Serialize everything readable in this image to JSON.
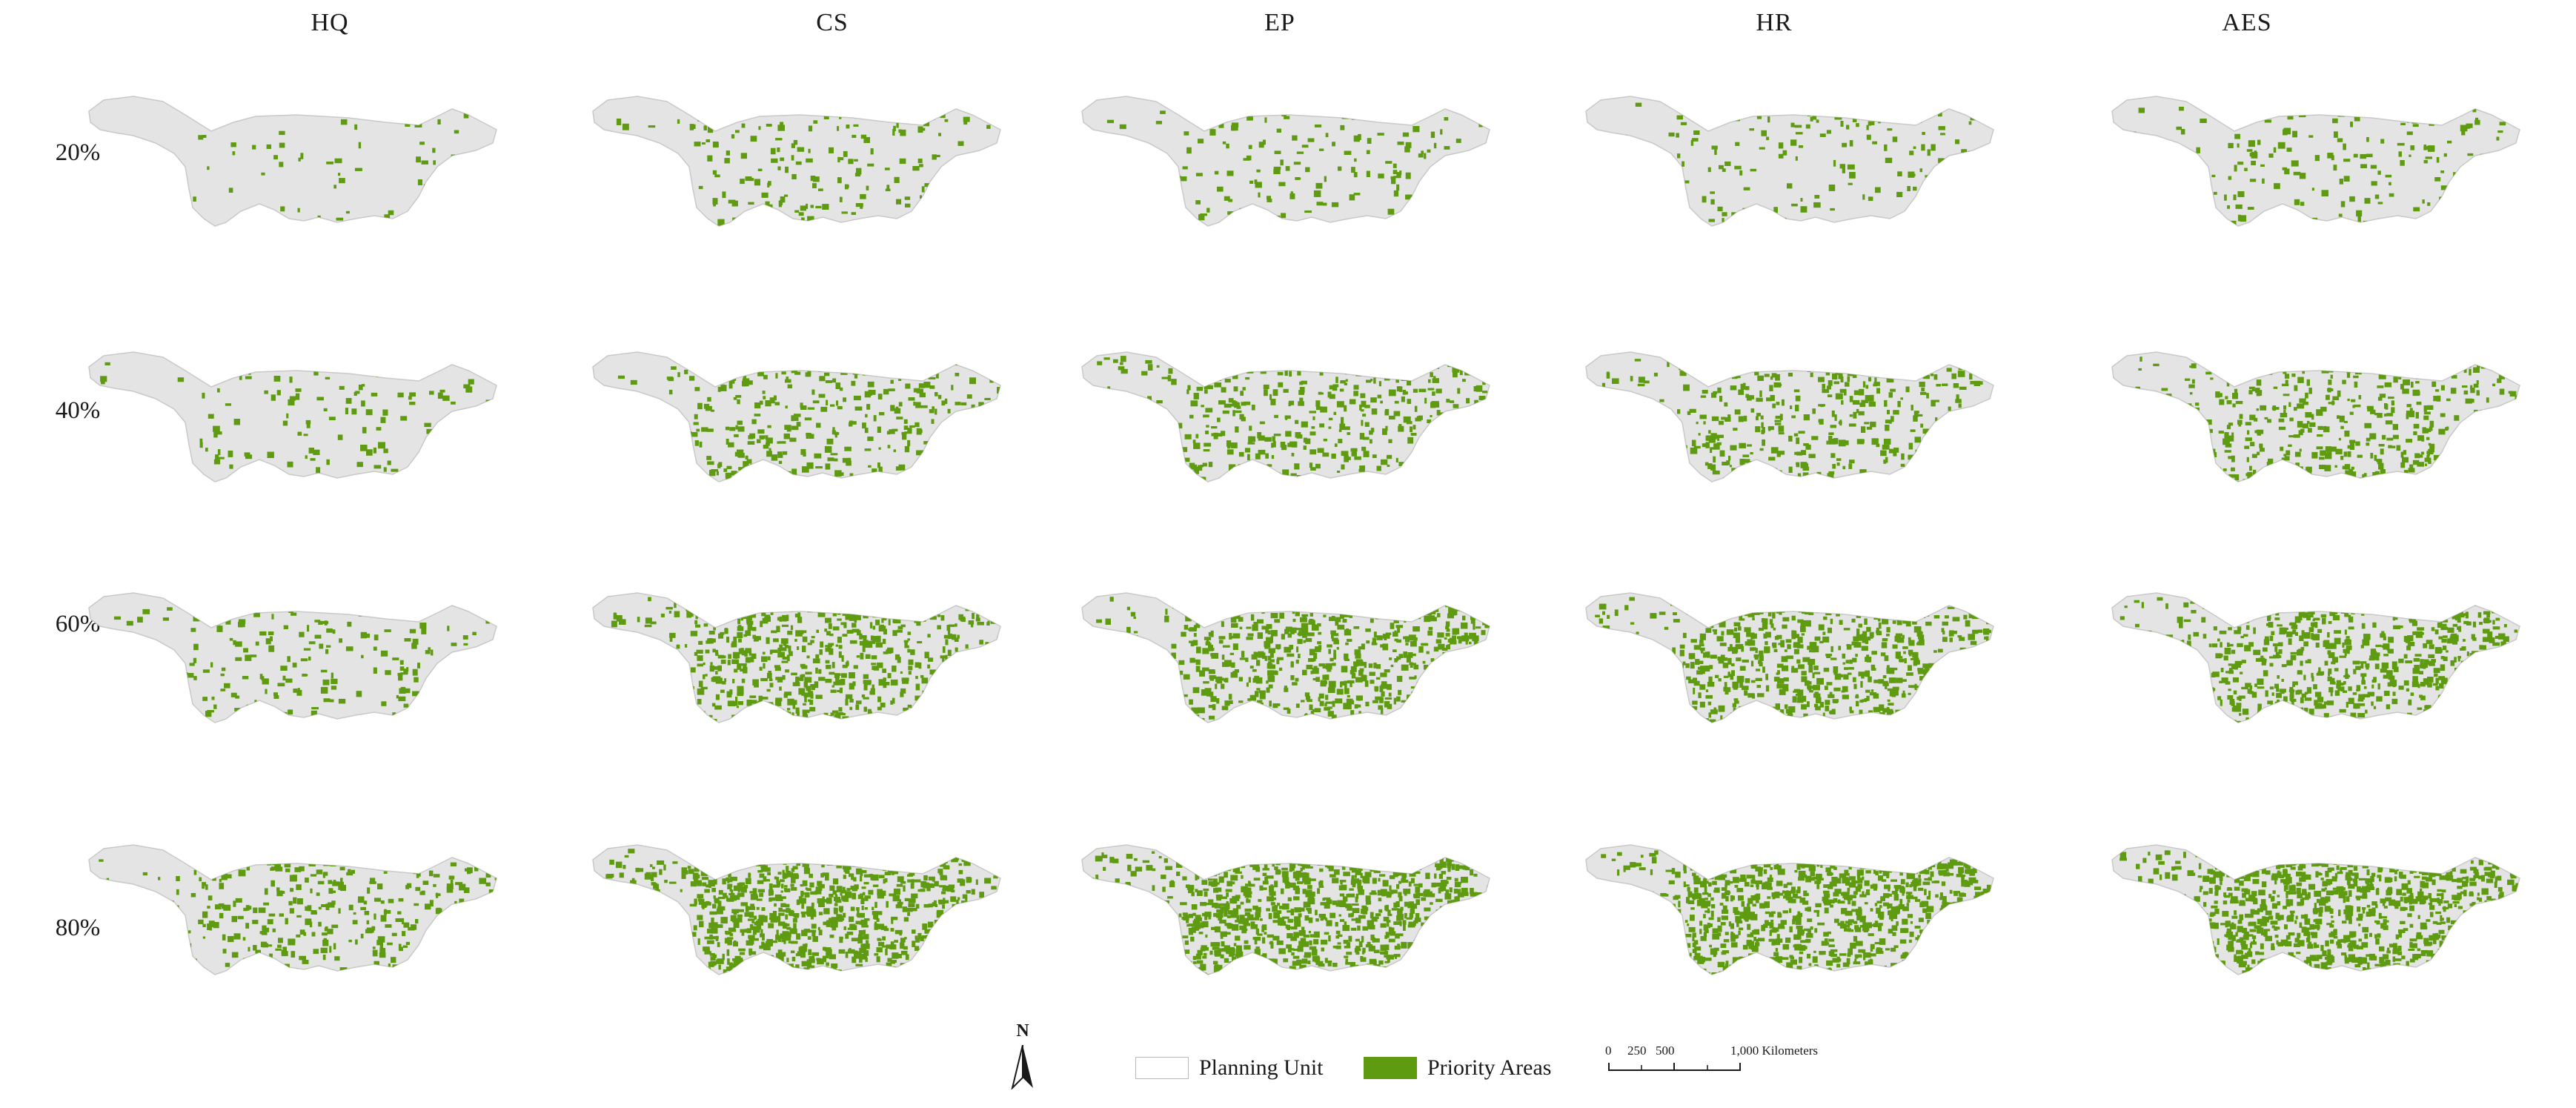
{
  "figure": {
    "columns": [
      "HQ",
      "CS",
      "EP",
      "HR",
      "AES"
    ],
    "rows": [
      "20%",
      "40%",
      "60%",
      "80%"
    ],
    "priority_fraction": {
      "HQ": [
        0.05,
        0.1,
        0.18,
        0.3
      ],
      "CS": [
        0.16,
        0.3,
        0.55,
        0.78
      ],
      "EP": [
        0.14,
        0.35,
        0.58,
        0.82
      ],
      "HR": [
        0.13,
        0.33,
        0.57,
        0.8
      ],
      "AES": [
        0.15,
        0.36,
        0.58,
        0.8
      ]
    }
  },
  "legend": {
    "north_label": "N",
    "planning_unit_label": "Planning Unit",
    "priority_areas_label": "Priority Areas",
    "scale_ticks": [
      "0",
      "250",
      "500",
      "1,000 Kilometers"
    ]
  },
  "colors": {
    "planning_unit": "#e4e4e4",
    "planning_unit_outline": "#c9c9c9",
    "priority": "#5e9b10"
  }
}
